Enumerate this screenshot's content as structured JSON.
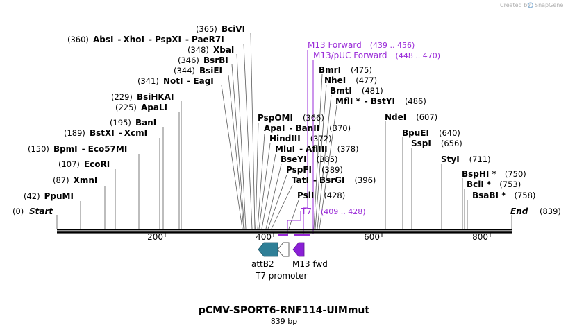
{
  "credit": {
    "prefix": "Created by",
    "brand": "SnapGene"
  },
  "map": {
    "title": "pCMV-SPORT6-RNF114-UIMmut",
    "length_label": "839 bp"
  },
  "colors": {
    "primer": "#9a2bd8",
    "attB2": "#2f7f97",
    "m13": "#8a1fd6",
    "t7": "#ffffff",
    "line": "#555555"
  },
  "ticks": [
    "200",
    "400",
    "600",
    "800"
  ],
  "ends": {
    "start_pos": "(0)",
    "start": "Start",
    "end": "End",
    "end_pos": "(839)"
  },
  "enzymes": [
    {
      "id": "ppumi",
      "pos": "(42)",
      "name": "PpuMI"
    },
    {
      "id": "xmni",
      "pos": "(87)",
      "name": "XmnI"
    },
    {
      "id": "ecori",
      "pos": "(107)",
      "name": "EcoRI"
    },
    {
      "id": "bpmi",
      "pos": "(150)",
      "name": "BpmI",
      "name2": "Eco57MI"
    },
    {
      "id": "bstxi",
      "pos": "(189)",
      "name": "BstXI",
      "name2": "XcmI"
    },
    {
      "id": "bani",
      "pos": "(195)",
      "name": "BanI"
    },
    {
      "id": "apali",
      "pos": "(225)",
      "name": "ApaLI"
    },
    {
      "id": "bsihkai",
      "pos": "(229)",
      "name": "BsiHKAI"
    },
    {
      "id": "noti",
      "pos": "(341)",
      "name": "NotI",
      "name2": "EagI"
    },
    {
      "id": "bsiei",
      "pos": "(344)",
      "name": "BsiEI"
    },
    {
      "id": "bsrbi",
      "pos": "(346)",
      "name": "BsrBI"
    },
    {
      "id": "xbai",
      "pos": "(348)",
      "name": "XbaI"
    },
    {
      "id": "absi",
      "pos": "(360)",
      "name": "AbsI",
      "name2": "XhoI",
      "name3": "PspXI",
      "name4": "PaeR7I"
    },
    {
      "id": "bcivi",
      "pos": "(365)",
      "name": "BciVI"
    },
    {
      "id": "pspomi",
      "pos": "(366)",
      "name": "PspOMI"
    },
    {
      "id": "apai",
      "pos": "(370)",
      "name": "ApaI",
      "name2": "BanII"
    },
    {
      "id": "hindiii",
      "pos": "(372)",
      "name": "HindIII"
    },
    {
      "id": "mlui",
      "pos": "(378)",
      "name": "MluI",
      "name2": "AflIII"
    },
    {
      "id": "bseyi",
      "pos": "(385)",
      "name": "BseYI"
    },
    {
      "id": "pspfi",
      "pos": "(389)",
      "name": "PspFI"
    },
    {
      "id": "tati",
      "pos": "(396)",
      "name": "TatI",
      "name2": "BsrGI"
    },
    {
      "id": "psii",
      "pos": "(428)",
      "name": "PsiI"
    },
    {
      "id": "bmri",
      "pos": "(475)",
      "name": "BmrI"
    },
    {
      "id": "nhei",
      "pos": "(477)",
      "name": "NheI"
    },
    {
      "id": "bmti",
      "pos": "(481)",
      "name": "BmtI"
    },
    {
      "id": "mfli",
      "pos": "(486)",
      "name": "MflI *",
      "name2": "BstYI"
    },
    {
      "id": "ndei",
      "pos": "(607)",
      "name": "NdeI"
    },
    {
      "id": "bpuei",
      "pos": "(640)",
      "name": "BpuEI"
    },
    {
      "id": "sspi",
      "pos": "(656)",
      "name": "SspI"
    },
    {
      "id": "styi",
      "pos": "(711)",
      "name": "StyI"
    },
    {
      "id": "bsphi",
      "pos": "(750)",
      "name": "BspHI *"
    },
    {
      "id": "bcli",
      "pos": "(753)",
      "name": "BclI *"
    },
    {
      "id": "bsabi",
      "pos": "(758)",
      "name": "BsaBI *"
    }
  ],
  "primers": [
    {
      "name": "M13 Forward",
      "range": "(439 .. 456)"
    },
    {
      "name": "M13/pUC Forward",
      "range": "(448 .. 470)"
    },
    {
      "name": "T7",
      "range": "(409 .. 428)"
    }
  ],
  "features": [
    {
      "name": "attB2"
    },
    {
      "name": "M13 fwd"
    },
    {
      "name": "T7 promoter"
    }
  ]
}
